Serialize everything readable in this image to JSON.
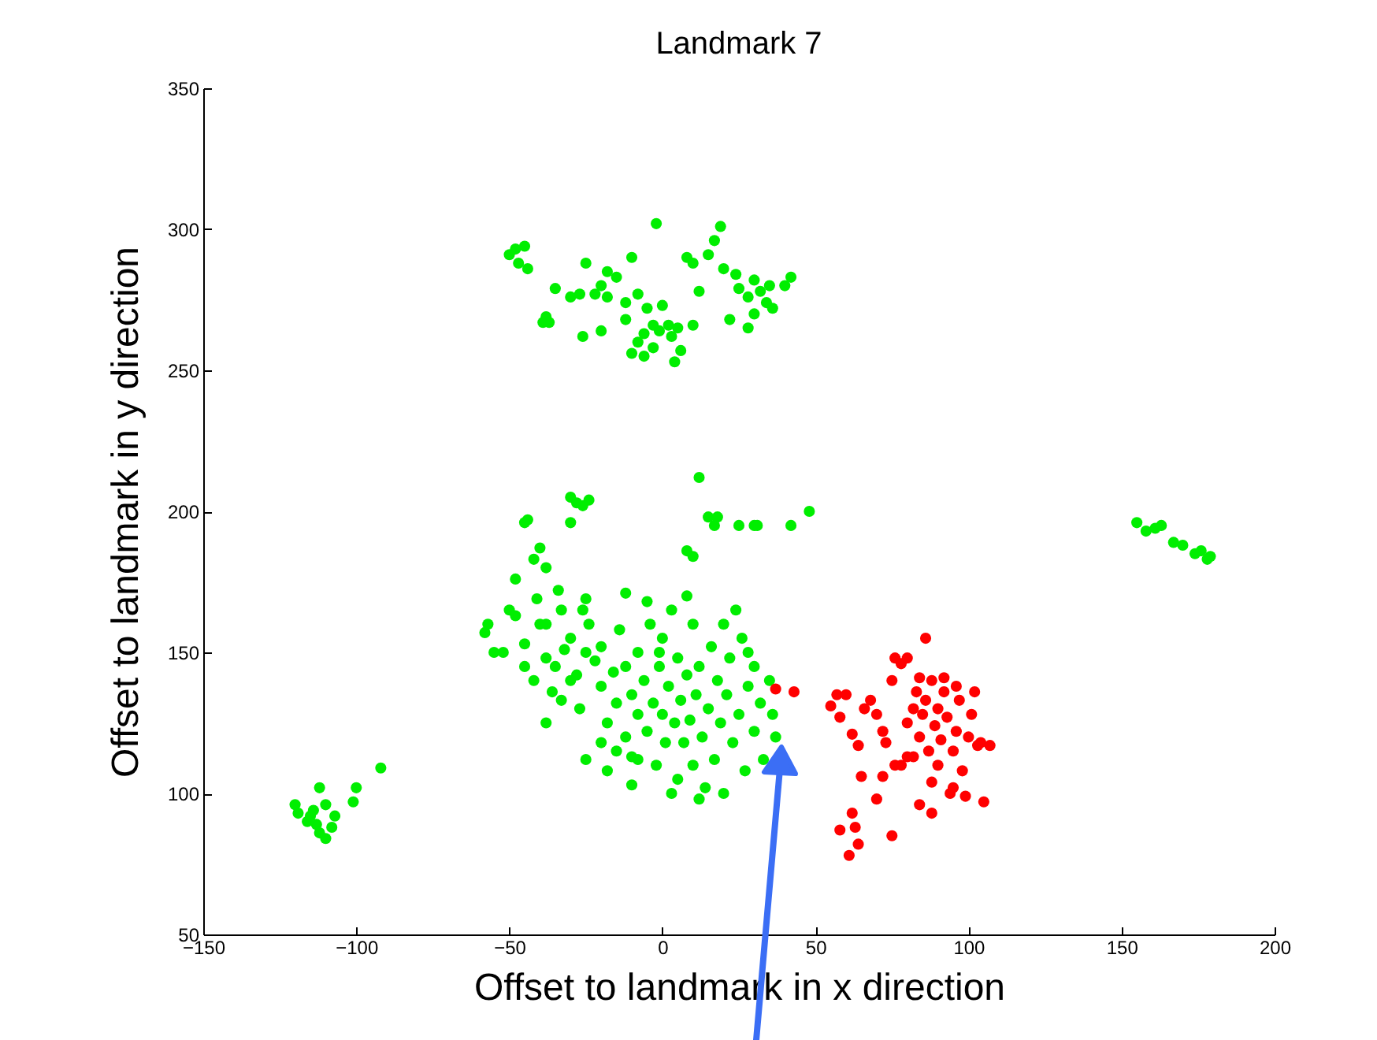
{
  "chart_data": {
    "type": "scatter",
    "title": "Landmark 7",
    "xlabel": "Offset to landmark in x direction",
    "ylabel": "Offset to landmark in y direction",
    "xlim": [
      -150,
      200
    ],
    "xticks": [
      -150,
      -100,
      -50,
      0,
      50,
      100,
      150,
      200
    ],
    "ylim": [
      50,
      350
    ],
    "yticks": [
      50,
      100,
      150,
      200,
      250,
      300,
      350
    ],
    "grid": false,
    "series": [
      {
        "color": "#00ee00",
        "x": [
          -50,
          -48,
          -45,
          -47,
          -44,
          -38,
          -39,
          -37,
          -35,
          -30,
          -25,
          -27,
          -22,
          -20,
          -18,
          -18,
          -15,
          -12,
          -10,
          -8,
          -5,
          -3,
          -1,
          0,
          2,
          -6,
          -8,
          -10,
          -6,
          -3,
          3,
          5,
          -2,
          -12,
          -20,
          -26,
          4,
          6,
          8,
          10,
          12,
          15,
          17,
          19,
          22,
          25,
          28,
          30,
          32,
          34,
          35,
          36,
          30,
          28,
          40,
          42,
          20,
          24,
          10,
          -30,
          -28,
          -26,
          -24,
          -30,
          -45,
          -44,
          -40,
          -42,
          -38,
          -48,
          -41,
          -38,
          -33,
          12,
          15,
          18,
          17,
          25,
          30,
          31,
          42,
          48,
          -57,
          -58,
          8,
          10,
          -25,
          -12,
          155,
          158,
          161,
          163,
          167,
          170,
          174,
          176,
          178,
          179,
          -120,
          -119,
          -116,
          -114,
          -113,
          -112,
          -110,
          -108,
          -107,
          -112,
          -110,
          -101,
          -100,
          -92,
          -115,
          -55,
          -50,
          -45,
          -42,
          -40,
          -38,
          -36,
          -35,
          -34,
          -32,
          -30,
          -28,
          -27,
          -25,
          -24,
          -22,
          -20,
          -20,
          -18,
          -16,
          -15,
          -14,
          -12,
          -12,
          -10,
          -10,
          -8,
          -8,
          -6,
          -5,
          -4,
          -3,
          -2,
          -1,
          0,
          0,
          1,
          2,
          3,
          4,
          5,
          5,
          6,
          7,
          8,
          9,
          10,
          10,
          11,
          12,
          13,
          14,
          15,
          16,
          17,
          18,
          19,
          20,
          21,
          22,
          23,
          25,
          26,
          27,
          28,
          30,
          30,
          32,
          33,
          35,
          36,
          37,
          -15,
          -20,
          -25,
          -30,
          -38,
          -45,
          -48,
          -52,
          -33,
          -26,
          -5,
          -8,
          3,
          12,
          -1,
          20,
          24,
          28,
          8,
          -18,
          -10
        ],
        "values": [
          291,
          293,
          294,
          288,
          286,
          269,
          267,
          267,
          279,
          276,
          288,
          277,
          277,
          280,
          285,
          276,
          283,
          274,
          290,
          277,
          272,
          266,
          264,
          273,
          266,
          263,
          260,
          256,
          255,
          258,
          262,
          265,
          302,
          268,
          264,
          262,
          253,
          257,
          290,
          266,
          278,
          291,
          296,
          301,
          268,
          279,
          276,
          282,
          278,
          274,
          280,
          272,
          270,
          265,
          280,
          283,
          286,
          284,
          288,
          205,
          203,
          202,
          204,
          196,
          196,
          197,
          187,
          183,
          180,
          176,
          169,
          160,
          165,
          212,
          198,
          198,
          195,
          195,
          195,
          195,
          195,
          200,
          160,
          157,
          186,
          184,
          169,
          171,
          196,
          193,
          194,
          195,
          189,
          188,
          185,
          186,
          183,
          184,
          96,
          93,
          90,
          94,
          89,
          86,
          84,
          88,
          92,
          102,
          96,
          97,
          102,
          109,
          92,
          150,
          165,
          153,
          140,
          160,
          148,
          136,
          145,
          172,
          151,
          155,
          142,
          130,
          150,
          160,
          147,
          138,
          152,
          125,
          143,
          132,
          158,
          120,
          145,
          135,
          113,
          150,
          128,
          140,
          122,
          160,
          132,
          110,
          145,
          128,
          155,
          118,
          138,
          165,
          125,
          148,
          105,
          133,
          118,
          142,
          126,
          160,
          110,
          135,
          145,
          120,
          102,
          130,
          152,
          112,
          140,
          125,
          100,
          135,
          148,
          118,
          128,
          155,
          108,
          138,
          122,
          145,
          132,
          112,
          140,
          128,
          120,
          115,
          118,
          112,
          140,
          125,
          145,
          163,
          150,
          133,
          165,
          168,
          112,
          100,
          98,
          150,
          160,
          165,
          150,
          170,
          108,
          103
        ]
      },
      {
        "color": "#ff0000",
        "x": [
          37,
          43,
          55,
          57,
          60,
          58,
          62,
          64,
          66,
          68,
          70,
          72,
          73,
          75,
          76,
          78,
          78,
          80,
          80,
          82,
          83,
          84,
          85,
          86,
          87,
          88,
          89,
          90,
          90,
          91,
          92,
          93,
          94,
          95,
          96,
          97,
          98,
          99,
          100,
          101,
          102,
          103,
          104,
          107,
          105,
          86,
          80,
          84,
          88,
          95,
          88,
          72,
          70,
          75,
          62,
          63,
          64,
          61,
          58,
          65,
          76,
          82,
          92,
          96,
          84
        ],
        "values": [
          137,
          136,
          131,
          135,
          135,
          127,
          121,
          117,
          130,
          133,
          128,
          122,
          118,
          140,
          148,
          146,
          110,
          113,
          125,
          130,
          136,
          120,
          128,
          133,
          115,
          140,
          124,
          130,
          110,
          119,
          136,
          127,
          100,
          115,
          122,
          133,
          108,
          99,
          120,
          128,
          136,
          117,
          118,
          117,
          97,
          155,
          148,
          96,
          93,
          102,
          104,
          106,
          98,
          85,
          93,
          88,
          82,
          78,
          87,
          106,
          110,
          113,
          141,
          138,
          141
        ]
      }
    ]
  }
}
